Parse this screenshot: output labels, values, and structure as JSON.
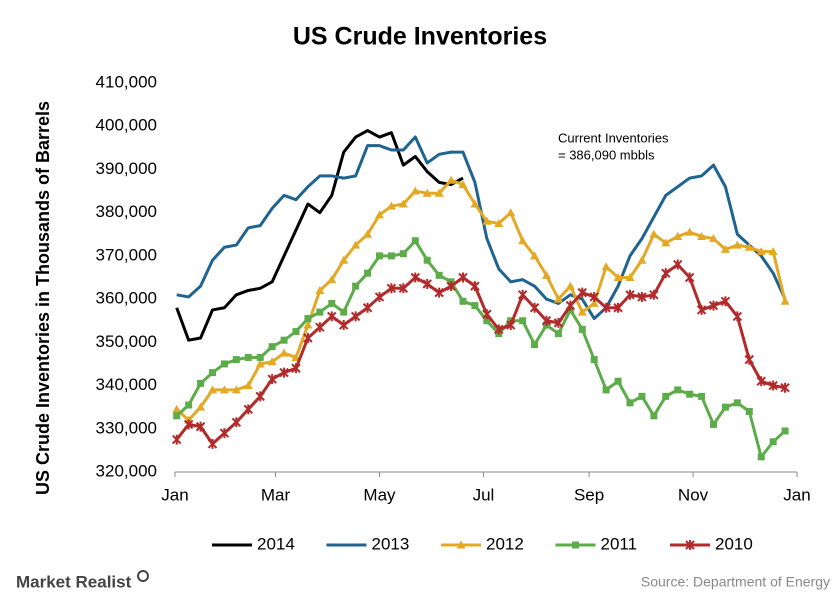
{
  "chart_data": {
    "type": "line",
    "title": "US Crude Inventories",
    "y_label": "US Crude Inventories in Thousands of Barrels",
    "annotation": [
      "Current Inventories",
      "= 386,090 mbbls"
    ],
    "source": "Source: Department of Energy",
    "brand": "Market Realist",
    "xlim": [
      1,
      366
    ],
    "xticks": [
      {
        "value": 1,
        "label": "Jan"
      },
      {
        "value": 60,
        "label": "Mar"
      },
      {
        "value": 121,
        "label": "May"
      },
      {
        "value": 182,
        "label": "Jul"
      },
      {
        "value": 244,
        "label": "Sep"
      },
      {
        "value": 305,
        "label": "Nov"
      },
      {
        "value": 366,
        "label": "Jan"
      }
    ],
    "ylim": [
      320000,
      410000
    ],
    "yticks": [
      {
        "value": 320000,
        "label": "320,000"
      },
      {
        "value": 330000,
        "label": "330,000"
      },
      {
        "value": 340000,
        "label": "340,000"
      },
      {
        "value": 350000,
        "label": "350,000"
      },
      {
        "value": 360000,
        "label": "360,000"
      },
      {
        "value": 370000,
        "label": "370,000"
      },
      {
        "value": 380000,
        "label": "380,000"
      },
      {
        "value": 390000,
        "label": "390,000"
      },
      {
        "value": 400000,
        "label": "400,000"
      },
      {
        "value": 410000,
        "label": "410,000"
      }
    ],
    "grid": false,
    "x": [
      2,
      9,
      16,
      23,
      30,
      37,
      44,
      51,
      58,
      65,
      72,
      79,
      86,
      93,
      100,
      107,
      114,
      121,
      128,
      135,
      142,
      149,
      156,
      163,
      170,
      177,
      184,
      191,
      198,
      205,
      212,
      219,
      226,
      233,
      240,
      247,
      254,
      261,
      268,
      275,
      282,
      289,
      296,
      303,
      310,
      317,
      324,
      331,
      338,
      345,
      352,
      359
    ],
    "series": [
      {
        "name": "2014",
        "color": "#000000",
        "marker": "none",
        "values": [
          358000,
          350500,
          351000,
          357500,
          358000,
          361000,
          362000,
          362500,
          364000,
          370000,
          376000,
          382000,
          380000,
          384000,
          394000,
          397500,
          399000,
          397500,
          398500,
          391000,
          393000,
          389500,
          387000,
          386500,
          388000,
          null,
          null,
          null,
          null,
          null,
          null,
          null,
          null,
          null,
          null,
          null,
          null,
          null,
          null,
          null,
          null,
          null,
          null,
          null,
          null,
          null,
          null,
          null,
          null,
          null,
          null,
          null
        ]
      },
      {
        "name": "2013",
        "color": "#1f6391",
        "marker": "none",
        "values": [
          361000,
          360500,
          363000,
          369000,
          372000,
          372500,
          376500,
          377000,
          381000,
          384000,
          383000,
          386000,
          388500,
          388500,
          388000,
          388500,
          395500,
          395500,
          394500,
          394500,
          397500,
          391500,
          393500,
          394000,
          394000,
          387000,
          374000,
          367000,
          364000,
          364500,
          363000,
          360000,
          359000,
          361000,
          360000,
          355500,
          358000,
          363000,
          370000,
          374000,
          379000,
          384000,
          386000,
          388000,
          388500,
          391000,
          386000,
          375000,
          372500,
          370000,
          366000,
          360000
        ]
      },
      {
        "name": "2012",
        "color": "#e3a824",
        "marker": "triangle",
        "values": [
          334500,
          332000,
          335000,
          339000,
          339000,
          339000,
          340000,
          345000,
          345500,
          347500,
          346500,
          354000,
          362000,
          364500,
          369000,
          372500,
          375000,
          379500,
          381500,
          382000,
          385000,
          384500,
          384500,
          387500,
          386500,
          382000,
          378000,
          377500,
          380000,
          373500,
          370000,
          365500,
          360000,
          363000,
          357000,
          359000,
          367500,
          365000,
          365000,
          369000,
          375000,
          373000,
          374500,
          375500,
          374500,
          374000,
          371500,
          372500,
          372000,
          371000,
          371000,
          359500
        ]
      },
      {
        "name": "2011",
        "color": "#5cac4a",
        "marker": "square",
        "values": [
          333000,
          335500,
          340500,
          343000,
          345000,
          346000,
          346500,
          346500,
          349000,
          350500,
          352500,
          355500,
          357000,
          359000,
          357000,
          363000,
          366000,
          370000,
          370000,
          370500,
          373500,
          369000,
          365500,
          364000,
          359500,
          358500,
          355000,
          352000,
          355000,
          355000,
          349500,
          354000,
          352000,
          357500,
          353000,
          346000,
          339000,
          341000,
          336000,
          337500,
          333000,
          337500,
          339000,
          338000,
          337500,
          331000,
          335000,
          336000,
          334000,
          323500,
          327000,
          329500
        ]
      },
      {
        "name": "2010",
        "color": "#b22a2a",
        "marker": "star",
        "values": [
          327500,
          331000,
          330500,
          326500,
          329000,
          331500,
          334500,
          337500,
          341500,
          343000,
          344000,
          351000,
          353500,
          356000,
          354000,
          356000,
          358000,
          360500,
          362500,
          362500,
          365000,
          363500,
          361500,
          363000,
          365000,
          363000,
          356500,
          353000,
          354000,
          361000,
          358000,
          355000,
          354500,
          358500,
          361500,
          360500,
          358000,
          358000,
          361000,
          360500,
          361000,
          366000,
          368000,
          365000,
          357500,
          358500,
          359500,
          356000,
          346000,
          341000,
          340000,
          339500
        ]
      }
    ]
  }
}
